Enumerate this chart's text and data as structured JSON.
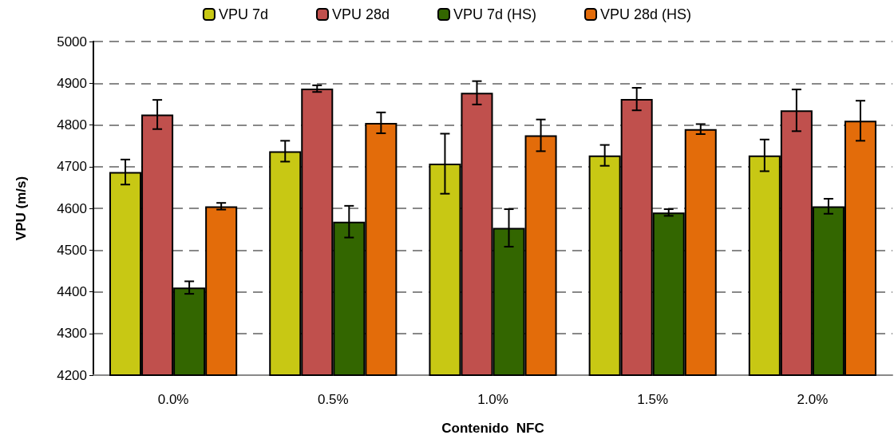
{
  "chart_data": {
    "type": "bar",
    "xlabel": "Contenido  NFC",
    "ylabel": "VPU (m/s)",
    "categories": [
      "0.0%",
      "0.5%",
      "1.0%",
      "1.5%",
      "2.0%"
    ],
    "series": [
      {
        "name": "VPU 7d",
        "color": "#c8c814",
        "values": [
          4687,
          4737,
          4707,
          4727,
          4727
        ],
        "errors": [
          30,
          25,
          72,
          25,
          38
        ]
      },
      {
        "name": "VPU 28d",
        "color": "#c0504d",
        "values": [
          4825,
          4887,
          4877,
          4862,
          4835
        ],
        "errors": [
          35,
          8,
          28,
          27,
          50
        ]
      },
      {
        "name": "VPU 7d (HS)",
        "color": "#336600",
        "values": [
          4410,
          4568,
          4553,
          4590,
          4605
        ],
        "errors": [
          15,
          38,
          45,
          8,
          18
        ]
      },
      {
        "name": "VPU 28d (HS)",
        "color": "#e36c0a",
        "values": [
          4605,
          4805,
          4775,
          4790,
          4810
        ],
        "errors": [
          8,
          25,
          38,
          12,
          48
        ]
      }
    ],
    "ylim": [
      4200,
      5000
    ],
    "yticks": [
      4200,
      4300,
      4400,
      4500,
      4600,
      4700,
      4800,
      4900,
      5000
    ],
    "grid": "y",
    "legend": "top"
  }
}
